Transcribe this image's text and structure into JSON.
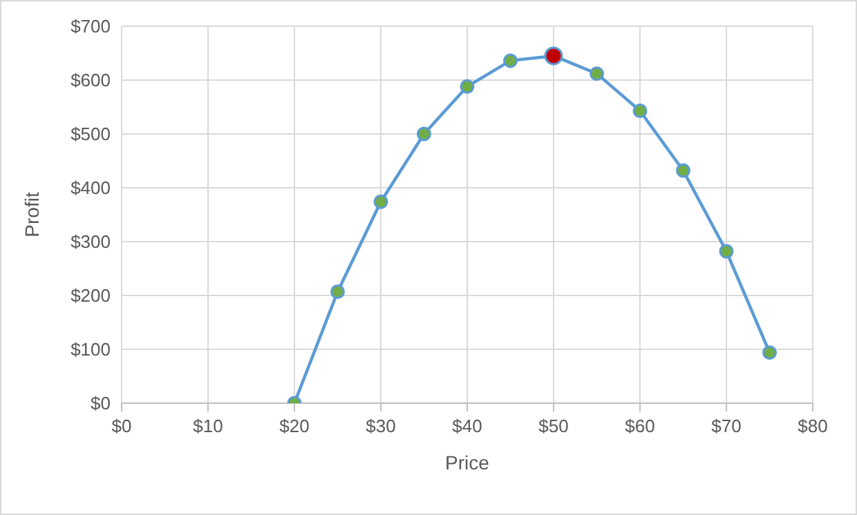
{
  "chart_data": {
    "type": "line",
    "xlabel": "Price",
    "ylabel": "Profit",
    "x": [
      20,
      25,
      30,
      35,
      40,
      45,
      50,
      55,
      60,
      65,
      70,
      75
    ],
    "series": [
      {
        "color": "#5b9bd5",
        "colors": [
          "#70ad47",
          "#70ad47",
          "#70ad47",
          "#70ad47",
          "#70ad47",
          "#70ad47",
          "#c00000",
          "#70ad47",
          "#70ad47",
          "#70ad47",
          "#70ad47",
          "#70ad47"
        ],
        "values": [
          0,
          207,
          374,
          500,
          588,
          636,
          645,
          612,
          543,
          432,
          282,
          94
        ]
      }
    ],
    "xlim": [
      0,
      80
    ],
    "xticks": [
      {
        "value": 0,
        "label": "$0"
      },
      {
        "value": 10,
        "label": "$10"
      },
      {
        "value": 20,
        "label": "$20"
      },
      {
        "value": 30,
        "label": "$30"
      },
      {
        "value": 40,
        "label": "$40"
      },
      {
        "value": 50,
        "label": "$50"
      },
      {
        "value": 60,
        "label": "$60"
      },
      {
        "value": 70,
        "label": "$70"
      },
      {
        "value": 80,
        "label": "$80"
      }
    ],
    "ylim": [
      0,
      700
    ],
    "yticks": [
      {
        "value": 0,
        "label": "$0"
      },
      {
        "value": 100,
        "label": "$100"
      },
      {
        "value": 200,
        "label": "$200"
      },
      {
        "value": 300,
        "label": "$300"
      },
      {
        "value": 400,
        "label": "$400"
      },
      {
        "value": 500,
        "label": "$500"
      },
      {
        "value": 600,
        "label": "$600"
      },
      {
        "value": 700,
        "label": "$700"
      }
    ],
    "grid": true,
    "marker": "circle",
    "line_style": "solid",
    "legend": false
  }
}
